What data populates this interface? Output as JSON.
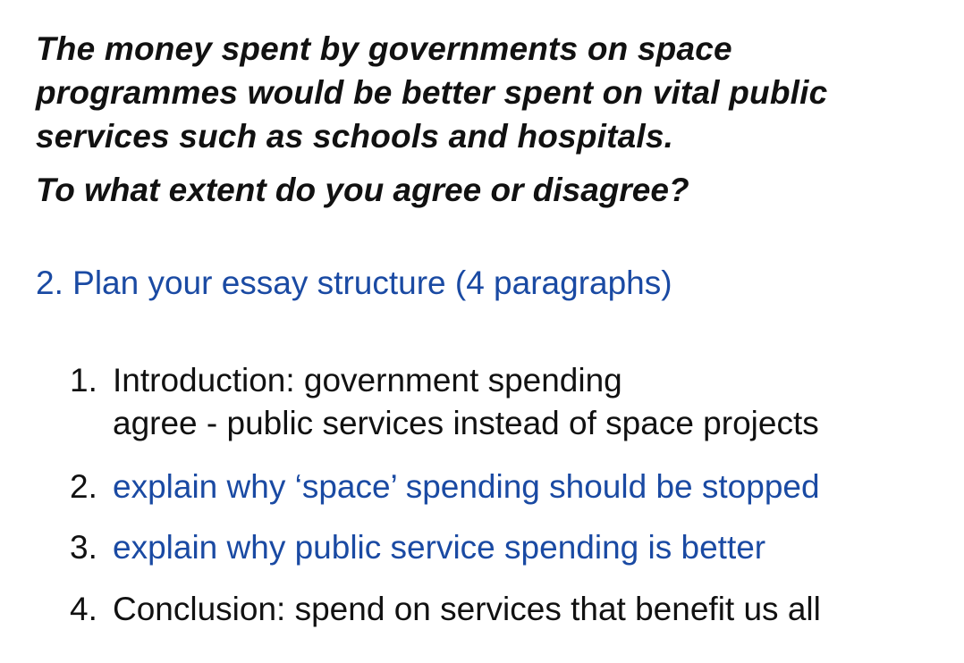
{
  "question": {
    "lines": [
      "The money spent by governments on space",
      "programmes would be better spent on vital public",
      "services such as schools and hospitals."
    ],
    "prompt": "To what extent do you agree or disagree?"
  },
  "step_heading": "2. Plan your essay structure (4 paragraphs)",
  "plan": [
    {
      "number": "1.",
      "lines": [
        "Introduction: government spending",
        "agree - public services instead of space projects"
      ],
      "color": "#111111"
    },
    {
      "number": "2.",
      "lines": [
        "explain why ‘space’ spending should be stopped"
      ],
      "color": "#1a4aa3"
    },
    {
      "number": "3.",
      "lines": [
        "explain why public service spending is better"
      ],
      "color": "#1a4aa3"
    },
    {
      "number": "4.",
      "lines": [
        "Conclusion: spend on services that benefit us all"
      ],
      "color": "#111111"
    }
  ],
  "colors": {
    "accent_blue": "#1a4aa3",
    "text": "#111111",
    "background": "#ffffff"
  }
}
